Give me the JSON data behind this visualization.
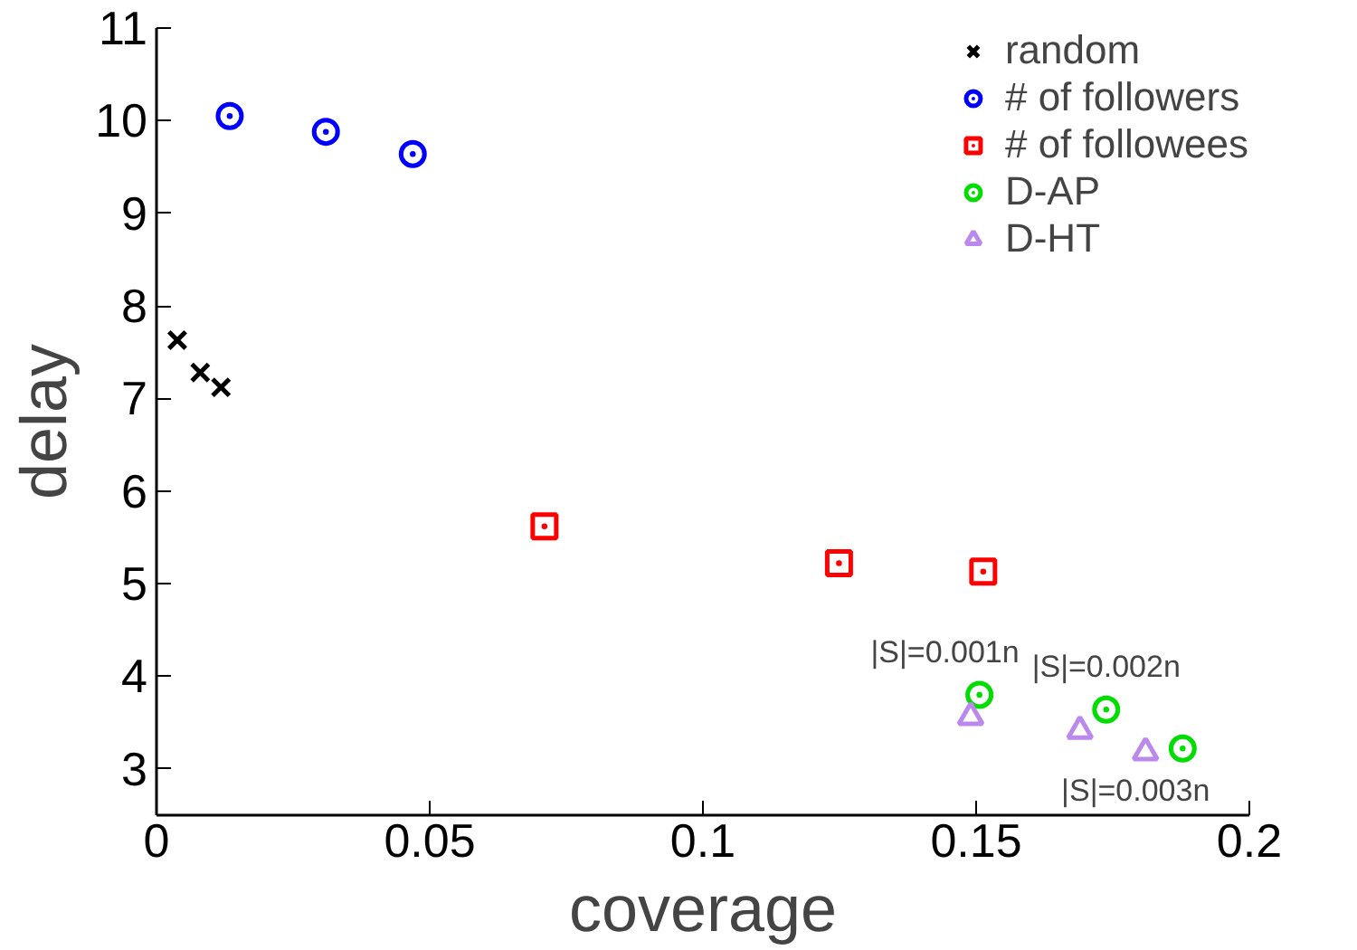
{
  "chart_data": {
    "type": "scatter",
    "xlabel": "coverage",
    "ylabel": "delay",
    "xlim": [
      0,
      0.2
    ],
    "ylim": [
      2.5,
      11
    ],
    "xticks": [
      0,
      0.05,
      0.1,
      0.15,
      0.2
    ],
    "yticks": [
      3,
      4,
      5,
      6,
      7,
      8,
      9,
      10,
      11
    ],
    "grid": false,
    "legend": "top right",
    "series": [
      {
        "name": "random",
        "color": "#000000",
        "marker": "cross",
        "x": [
          0.0038,
          0.008,
          0.0118
        ],
        "values": [
          7.63,
          7.28,
          7.12
        ]
      },
      {
        "name": "# of followers",
        "color": "#0000ff",
        "marker": "circle",
        "x": [
          0.0134,
          0.031,
          0.0469
        ],
        "values": [
          10.05,
          9.88,
          9.64
        ]
      },
      {
        "name": "# of followees",
        "color": "#ff0000",
        "marker": "square",
        "x": [
          0.071,
          0.1249,
          0.1513
        ],
        "values": [
          5.62,
          5.22,
          5.13
        ]
      },
      {
        "name": "D-AP",
        "color": "#00dd00",
        "marker": "circle",
        "x": [
          0.1506,
          0.1738,
          0.1878
        ],
        "values": [
          3.8,
          3.64,
          3.22
        ]
      },
      {
        "name": "D-HT",
        "color": "#bb88ee",
        "marker": "triangle",
        "x": [
          0.149,
          0.169,
          0.181
        ],
        "values": [
          3.56,
          3.41,
          3.18
        ]
      }
    ],
    "annotations": [
      {
        "text": "|S|=0.001n",
        "x": 0.1506,
        "y": 3.8
      },
      {
        "text": "|S|=0.002n",
        "x": 0.1738,
        "y": 3.64
      },
      {
        "text": "|S|=0.003n",
        "x": 0.1878,
        "y": 3.22
      }
    ]
  }
}
